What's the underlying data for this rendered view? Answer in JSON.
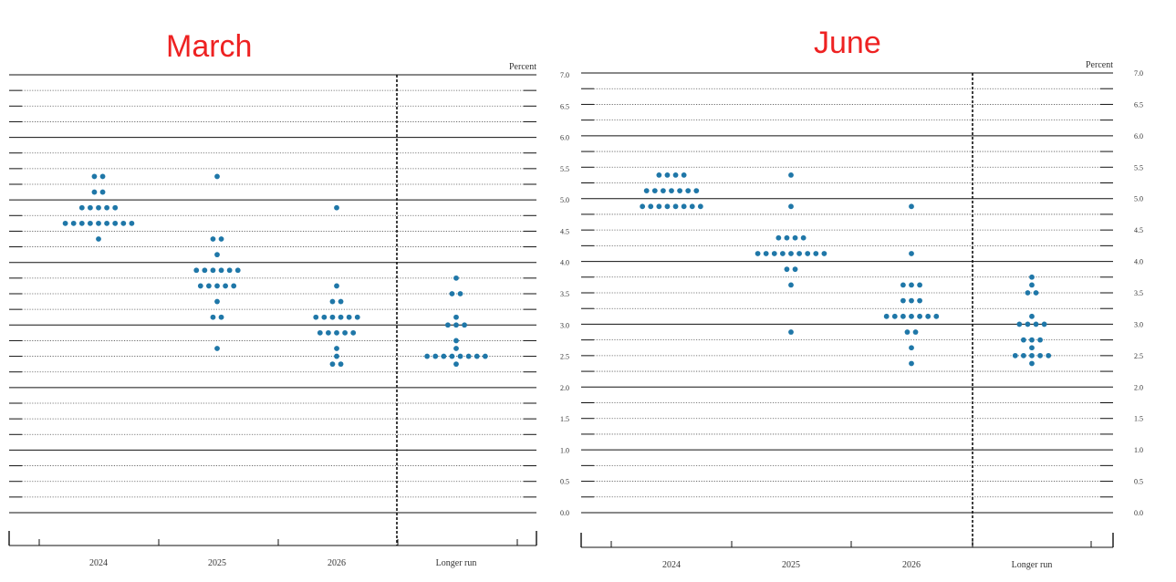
{
  "panels": [
    {
      "title": "March",
      "unit_label": "Percent",
      "chart_data": {
        "type": "scatter",
        "categories": [
          "2024",
          "2025",
          "2026",
          "Longer run"
        ],
        "y_ticks": [
          "0.0",
          "0.5",
          "1.0",
          "1.5",
          "2.0",
          "2.5",
          "3.0",
          "3.5",
          "4.0",
          "4.5",
          "5.0",
          "5.5",
          "6.0",
          "6.5",
          "7.0"
        ],
        "ylim": [
          0,
          7
        ],
        "dot_color": "#1f77a8",
        "series": [
          {
            "category": "2024",
            "dots": [
              {
                "y": 5.375,
                "count": 2
              },
              {
                "y": 5.125,
                "count": 2
              },
              {
                "y": 4.875,
                "count": 5
              },
              {
                "y": 4.625,
                "count": 9
              },
              {
                "y": 4.375,
                "count": 1
              }
            ]
          },
          {
            "category": "2025",
            "dots": [
              {
                "y": 5.375,
                "count": 1
              },
              {
                "y": 4.375,
                "count": 2
              },
              {
                "y": 4.125,
                "count": 1
              },
              {
                "y": 3.875,
                "count": 6
              },
              {
                "y": 3.625,
                "count": 5
              },
              {
                "y": 3.375,
                "count": 1
              },
              {
                "y": 3.125,
                "count": 2
              },
              {
                "y": 2.625,
                "count": 1
              }
            ]
          },
          {
            "category": "2026",
            "dots": [
              {
                "y": 4.875,
                "count": 1
              },
              {
                "y": 3.625,
                "count": 1
              },
              {
                "y": 3.375,
                "count": 2
              },
              {
                "y": 3.125,
                "count": 6
              },
              {
                "y": 2.875,
                "count": 5
              },
              {
                "y": 2.625,
                "count": 1
              },
              {
                "y": 2.5,
                "count": 1
              },
              {
                "y": 2.375,
                "count": 2
              }
            ]
          },
          {
            "category": "Longer run",
            "dots": [
              {
                "y": 3.75,
                "count": 1
              },
              {
                "y": 3.5,
                "count": 2
              },
              {
                "y": 3.125,
                "count": 1
              },
              {
                "y": 3.0,
                "count": 3
              },
              {
                "y": 2.75,
                "count": 1
              },
              {
                "y": 2.625,
                "count": 1
              },
              {
                "y": 2.5,
                "count": 8
              },
              {
                "y": 2.375,
                "count": 1
              }
            ]
          }
        ]
      }
    },
    {
      "title": "June",
      "unit_label": "Percent",
      "chart_data": {
        "type": "scatter",
        "categories": [
          "2024",
          "2025",
          "2026",
          "Longer run"
        ],
        "y_ticks": [
          "0.0",
          "0.5",
          "1.0",
          "1.5",
          "2.0",
          "2.5",
          "3.0",
          "3.5",
          "4.0",
          "4.5",
          "5.0",
          "5.5",
          "6.0",
          "6.5",
          "7.0"
        ],
        "ylim": [
          0,
          7
        ],
        "dot_color": "#1f77a8",
        "series": [
          {
            "category": "2024",
            "dots": [
              {
                "y": 5.375,
                "count": 4
              },
              {
                "y": 5.125,
                "count": 7
              },
              {
                "y": 4.875,
                "count": 8
              }
            ]
          },
          {
            "category": "2025",
            "dots": [
              {
                "y": 5.375,
                "count": 1
              },
              {
                "y": 4.875,
                "count": 1
              },
              {
                "y": 4.375,
                "count": 4
              },
              {
                "y": 4.125,
                "count": 9
              },
              {
                "y": 3.875,
                "count": 2
              },
              {
                "y": 3.625,
                "count": 1
              },
              {
                "y": 2.875,
                "count": 1
              }
            ]
          },
          {
            "category": "2026",
            "dots": [
              {
                "y": 4.875,
                "count": 1
              },
              {
                "y": 4.125,
                "count": 1
              },
              {
                "y": 3.625,
                "count": 3
              },
              {
                "y": 3.375,
                "count": 3
              },
              {
                "y": 3.125,
                "count": 7
              },
              {
                "y": 2.875,
                "count": 2
              },
              {
                "y": 2.625,
                "count": 1
              },
              {
                "y": 2.375,
                "count": 1
              }
            ]
          },
          {
            "category": "Longer run",
            "dots": [
              {
                "y": 3.75,
                "count": 1
              },
              {
                "y": 3.625,
                "count": 1
              },
              {
                "y": 3.5,
                "count": 2
              },
              {
                "y": 3.125,
                "count": 1
              },
              {
                "y": 3.0,
                "count": 4
              },
              {
                "y": 2.75,
                "count": 3
              },
              {
                "y": 2.625,
                "count": 1
              },
              {
                "y": 2.5,
                "count": 5
              },
              {
                "y": 2.375,
                "count": 1
              }
            ]
          }
        ]
      }
    }
  ]
}
